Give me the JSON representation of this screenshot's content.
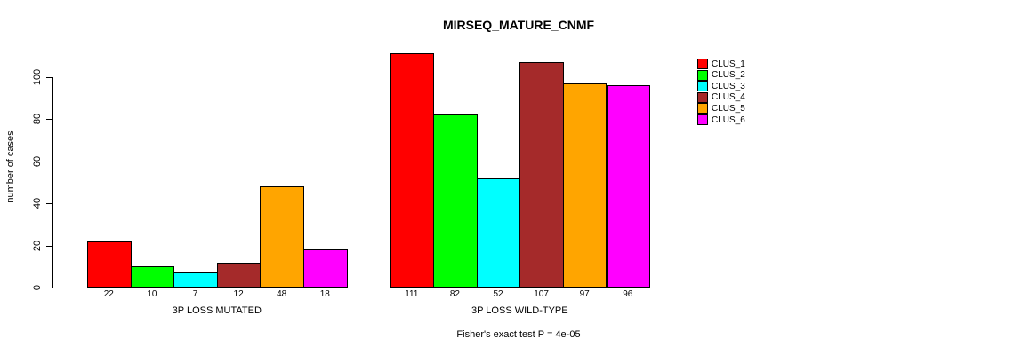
{
  "chart_data": {
    "type": "bar",
    "title": "MIRSEQ_MATURE_CNMF",
    "ylabel": "number of cases",
    "xlabel": "",
    "yticks": [
      0,
      20,
      40,
      60,
      80,
      100
    ],
    "ylim": [
      0,
      115
    ],
    "grid": false,
    "legend_position": "right",
    "categories": [
      "3P LOSS MUTATED",
      "3P LOSS WILD-TYPE"
    ],
    "series": [
      {
        "name": "CLUS_1",
        "color": "#FF0000",
        "values": [
          22,
          111
        ]
      },
      {
        "name": "CLUS_2",
        "color": "#00FF00",
        "values": [
          10,
          82
        ]
      },
      {
        "name": "CLUS_3",
        "color": "#00FFFF",
        "values": [
          7,
          52
        ]
      },
      {
        "name": "CLUS_4",
        "color": "#A52A2A",
        "values": [
          12,
          107
        ]
      },
      {
        "name": "CLUS_5",
        "color": "#FFA500",
        "values": [
          48,
          97
        ]
      },
      {
        "name": "CLUS_6",
        "color": "#FF00FF",
        "values": [
          18,
          96
        ]
      }
    ],
    "bar_value_labels": [
      [
        22,
        10,
        7,
        12,
        48,
        18
      ],
      [
        111,
        82,
        52,
        107,
        97,
        96
      ]
    ],
    "annotation": "Fisher's exact test P = 4e-05"
  },
  "colors": {
    "axis": "#000000",
    "background": "#FFFFFF",
    "text": "#000000"
  }
}
